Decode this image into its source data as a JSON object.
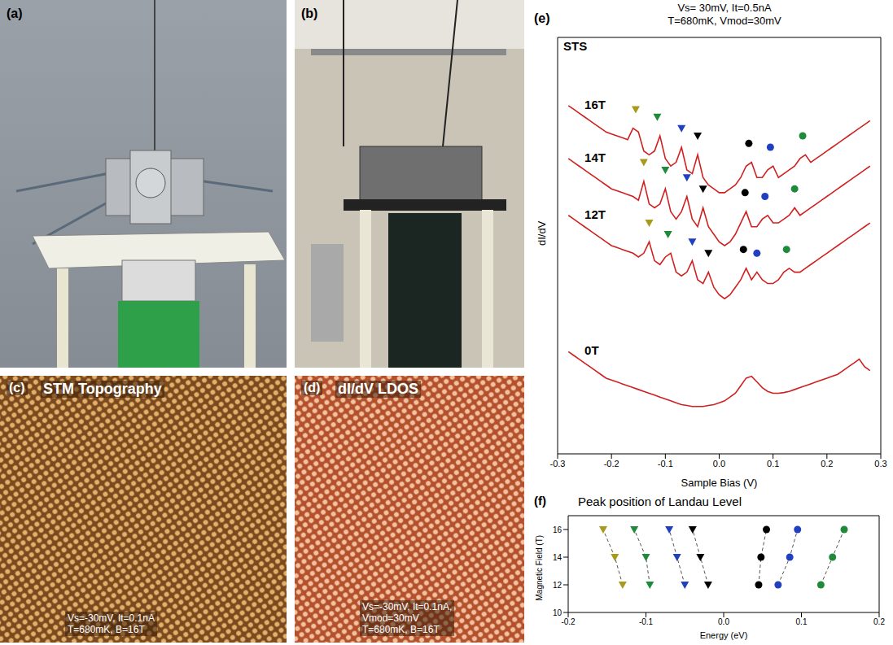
{
  "panels": [
    {
      "label": "(a)"
    },
    {
      "label": "(b)"
    },
    {
      "label": "(c)",
      "title": "STM Topography",
      "caption": [
        "Vs=-30mV, It=0.1nA",
        "T=680mK, B=16T"
      ]
    },
    {
      "label": "(d)",
      "title": "dI/dV LDOS",
      "caption": [
        "Vs=-30mV, It=0.1nA,",
        "Vmod=30mV",
        "T=680mK, B=16T"
      ]
    }
  ],
  "chart_data": [
    {
      "type": "line",
      "label": "(e)",
      "title": "STS",
      "annotations": [
        "Vs= 30mV, It=0.5nA",
        "T=680mK, Vmod=30mV"
      ],
      "x_label": "Sample Bias (V)",
      "y_label": "dI/dV",
      "xlim": [
        -0.3,
        0.3
      ],
      "xticks": [
        -0.3,
        -0.2,
        -0.1,
        {
          "value": 0,
          "label": "0.0"
        },
        0.1,
        0.2,
        0.3
      ],
      "ylim": [
        0,
        11
      ],
      "tick_labels": "x",
      "x": [
        -0.28,
        -0.27,
        -0.26,
        -0.25,
        -0.24,
        -0.23,
        -0.22,
        -0.21,
        -0.2,
        -0.19,
        -0.18,
        -0.17,
        -0.16,
        -0.15,
        -0.14,
        -0.13,
        -0.12,
        -0.11,
        -0.1,
        -0.09,
        -0.08,
        -0.07,
        -0.06,
        -0.05,
        -0.04,
        -0.03,
        -0.02,
        -0.01,
        0,
        0.01,
        0.02,
        0.03,
        0.04,
        0.05,
        0.06,
        0.07,
        0.08,
        0.09,
        0.1,
        0.11,
        0.12,
        0.13,
        0.14,
        0.15,
        0.16,
        0.17,
        0.18,
        0.19,
        0.2,
        0.21,
        0.22,
        0.23,
        0.24,
        0.25,
        0.26,
        0.27,
        0.28
      ],
      "series": [
        {
          "name": "16T",
          "color": "#d02020",
          "values": [
            9.2,
            9.1,
            9.0,
            8.9,
            8.8,
            8.7,
            8.6,
            8.5,
            8.45,
            8.4,
            8.35,
            8.3,
            8.6,
            8.5,
            8.0,
            7.9,
            8.0,
            8.4,
            7.8,
            7.6,
            7.7,
            8.1,
            7.5,
            7.4,
            7.9,
            7.3,
            7.1,
            7.0,
            6.9,
            6.9,
            7.0,
            7.1,
            7.3,
            7.6,
            7.7,
            7.3,
            7.3,
            7.5,
            7.6,
            7.3,
            7.4,
            7.5,
            7.6,
            7.8,
            7.9,
            7.7,
            7.8,
            7.9,
            8.0,
            8.1,
            8.2,
            8.3,
            8.4,
            8.5,
            8.6,
            8.7,
            8.8
          ],
          "markers": [
            {
              "x": -0.155,
              "y": 9.1,
              "color": "#a89a1c",
              "marker": "triangle_down"
            },
            {
              "x": -0.115,
              "y": 8.9,
              "color": "#1f8a3a",
              "marker": "triangle_down"
            },
            {
              "x": -0.07,
              "y": 8.6,
              "color": "#2040c0",
              "marker": "triangle_down"
            },
            {
              "x": -0.04,
              "y": 8.4,
              "color": "#000000",
              "marker": "triangle_down"
            },
            {
              "x": 0.055,
              "y": 8.2,
              "color": "#000000",
              "marker": "circle"
            },
            {
              "x": 0.095,
              "y": 8.1,
              "color": "#2040c0",
              "marker": "circle"
            },
            {
              "x": 0.155,
              "y": 8.4,
              "color": "#1f8a3a",
              "marker": "circle"
            }
          ]
        },
        {
          "name": "14T",
          "color": "#d02020",
          "values": [
            7.8,
            7.7,
            7.6,
            7.5,
            7.4,
            7.3,
            7.2,
            7.1,
            7.0,
            6.95,
            6.9,
            6.85,
            6.8,
            6.7,
            7.2,
            6.6,
            6.5,
            6.6,
            7.0,
            6.4,
            6.2,
            6.4,
            6.8,
            6.2,
            6.0,
            6.5,
            6.0,
            5.8,
            5.6,
            5.5,
            5.6,
            5.8,
            6.1,
            6.4,
            6.0,
            6.0,
            6.2,
            6.3,
            6.1,
            6.1,
            6.2,
            6.3,
            6.5,
            6.3,
            6.4,
            6.5,
            6.6,
            6.7,
            6.8,
            6.9,
            7.0,
            7.1,
            7.2,
            7.3,
            7.4,
            7.5,
            7.6
          ],
          "markers": [
            {
              "x": -0.14,
              "y": 7.7,
              "color": "#a89a1c",
              "marker": "triangle_down"
            },
            {
              "x": -0.1,
              "y": 7.5,
              "color": "#1f8a3a",
              "marker": "triangle_down"
            },
            {
              "x": -0.06,
              "y": 7.3,
              "color": "#2040c0",
              "marker": "triangle_down"
            },
            {
              "x": -0.03,
              "y": 7.0,
              "color": "#000000",
              "marker": "triangle_down"
            },
            {
              "x": 0.048,
              "y": 6.9,
              "color": "#000000",
              "marker": "circle"
            },
            {
              "x": 0.085,
              "y": 6.8,
              "color": "#2040c0",
              "marker": "circle"
            },
            {
              "x": 0.14,
              "y": 7.0,
              "color": "#1f8a3a",
              "marker": "circle"
            }
          ]
        },
        {
          "name": "12T",
          "color": "#d02020",
          "values": [
            6.3,
            6.2,
            6.1,
            6.0,
            5.9,
            5.8,
            5.7,
            5.6,
            5.5,
            5.45,
            5.4,
            5.35,
            5.3,
            5.2,
            5.3,
            5.6,
            5.1,
            5.0,
            5.2,
            5.3,
            4.8,
            4.7,
            4.8,
            5.1,
            4.6,
            4.5,
            4.8,
            4.4,
            4.2,
            4.1,
            4.2,
            4.4,
            4.6,
            4.9,
            4.6,
            4.8,
            4.6,
            4.5,
            4.5,
            4.6,
            4.8,
            4.9,
            4.8,
            4.8,
            4.9,
            5.0,
            5.1,
            5.2,
            5.3,
            5.4,
            5.5,
            5.6,
            5.7,
            5.8,
            5.9,
            6.0,
            6.1
          ],
          "markers": [
            {
              "x": -0.13,
              "y": 6.1,
              "color": "#a89a1c",
              "marker": "triangle_down"
            },
            {
              "x": -0.095,
              "y": 5.8,
              "color": "#1f8a3a",
              "marker": "triangle_down"
            },
            {
              "x": -0.05,
              "y": 5.6,
              "color": "#2040c0",
              "marker": "triangle_down"
            },
            {
              "x": -0.02,
              "y": 5.3,
              "color": "#000000",
              "marker": "triangle_down"
            },
            {
              "x": 0.045,
              "y": 5.4,
              "color": "#000000",
              "marker": "circle"
            },
            {
              "x": 0.07,
              "y": 5.3,
              "color": "#2040c0",
              "marker": "circle"
            },
            {
              "x": 0.125,
              "y": 5.4,
              "color": "#1f8a3a",
              "marker": "circle"
            }
          ]
        },
        {
          "name": "0T",
          "color": "#d02020",
          "values": [
            2.7,
            2.6,
            2.5,
            2.4,
            2.3,
            2.2,
            2.1,
            2.0,
            1.95,
            1.9,
            1.85,
            1.8,
            1.75,
            1.7,
            1.65,
            1.6,
            1.55,
            1.5,
            1.45,
            1.4,
            1.35,
            1.3,
            1.28,
            1.25,
            1.25,
            1.25,
            1.28,
            1.3,
            1.35,
            1.4,
            1.5,
            1.6,
            1.8,
            2.0,
            2.05,
            1.9,
            1.75,
            1.65,
            1.6,
            1.6,
            1.62,
            1.65,
            1.7,
            1.75,
            1.8,
            1.85,
            1.9,
            1.95,
            2.0,
            2.05,
            2.1,
            2.2,
            2.3,
            2.4,
            2.5,
            2.3,
            2.2
          ],
          "markers": []
        }
      ]
    },
    {
      "type": "scatter",
      "label": "(f)",
      "title": "Peak position of Landau Level",
      "x_label": "Energy (eV)",
      "y_label": "Magnetic Field (T)",
      "xlim": [
        -0.2,
        0.2
      ],
      "xticks": [
        -0.2,
        -0.1,
        {
          "value": 0,
          "label": "0.0"
        },
        0.1,
        0.2
      ],
      "ylim": [
        10,
        17
      ],
      "yticks": [
        10,
        12,
        14,
        16
      ],
      "series": [
        {
          "color": "#a89a1c",
          "marker": "triangle_down",
          "line_style": "dashed",
          "x": [
            -0.13,
            -0.14,
            -0.155
          ],
          "y": [
            12,
            14,
            16
          ]
        },
        {
          "color": "#1f8a3a",
          "marker": "triangle_down",
          "line_style": "dashed",
          "x": [
            -0.095,
            -0.1,
            -0.115
          ],
          "y": [
            12,
            14,
            16
          ]
        },
        {
          "color": "#2040c0",
          "marker": "triangle_down",
          "line_style": "dashed",
          "x": [
            -0.05,
            -0.06,
            -0.07
          ],
          "y": [
            12,
            14,
            16
          ]
        },
        {
          "color": "#000000",
          "marker": "triangle_down",
          "line_style": "dashed",
          "x": [
            -0.02,
            -0.03,
            -0.04
          ],
          "y": [
            12,
            14,
            16
          ]
        },
        {
          "color": "#000000",
          "marker": "circle",
          "line_style": "dashed",
          "x": [
            0.045,
            0.048,
            0.055
          ],
          "y": [
            12,
            14,
            16
          ]
        },
        {
          "color": "#2040c0",
          "marker": "circle",
          "line_style": "dashed",
          "x": [
            0.07,
            0.085,
            0.095
          ],
          "y": [
            12,
            14,
            16
          ]
        },
        {
          "color": "#1f8a3a",
          "marker": "circle",
          "line_style": "dashed",
          "x": [
            0.125,
            0.14,
            0.155
          ],
          "y": [
            12,
            14,
            16
          ]
        }
      ]
    }
  ]
}
